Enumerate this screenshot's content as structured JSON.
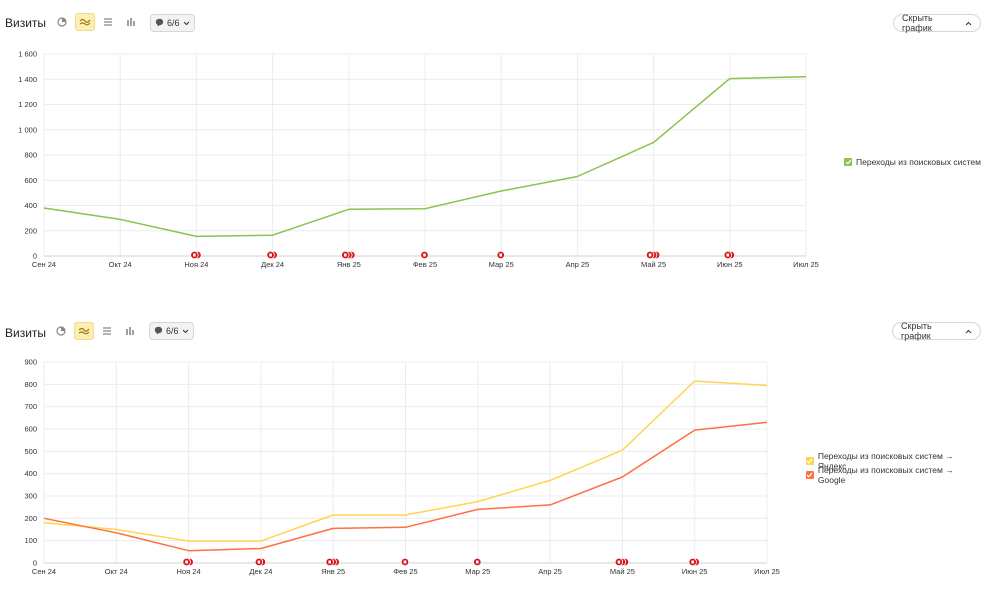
{
  "panels": [
    {
      "toolbar": {
        "title": "Визиты",
        "counter": "6/6",
        "hide_label": "Скрыть график",
        "view_icons": [
          "pie-chart-icon",
          "line-chart-icon",
          "area-chart-icon",
          "bar-chart-icon"
        ],
        "active_view": "line-chart-icon"
      },
      "legend": [
        {
          "label": "Переходы из поисковых систем",
          "color": "#8bc34a"
        }
      ]
    },
    {
      "toolbar": {
        "title": "Визиты",
        "counter": "6/6",
        "hide_label": "Скрыть график",
        "view_icons": [
          "pie-chart-icon",
          "line-chart-icon",
          "area-chart-icon",
          "bar-chart-icon"
        ],
        "active_view": "line-chart-icon"
      },
      "legend": [
        {
          "label": "Переходы из поисковых систем → Яндекс",
          "color": "#ffd54f"
        },
        {
          "label": "Переходы из поисковых систем → Google",
          "color": "#ff7043"
        }
      ]
    }
  ],
  "chart_data": [
    {
      "type": "line",
      "x": [
        "Сен 24",
        "Окт 24",
        "Ноя 24",
        "Дек 24",
        "Янв 25",
        "Фев 25",
        "Мар 25",
        "Апр 25",
        "Май 25",
        "Июн 25",
        "Июл 25"
      ],
      "ylim": [
        0,
        1600
      ],
      "yticks": [
        0,
        200,
        400,
        600,
        800,
        1000,
        1200,
        1400,
        1600
      ],
      "ytick_labels": [
        "0",
        "200",
        "400",
        "600",
        "800",
        "1 000",
        "1 200",
        "1 400",
        "1 600"
      ],
      "grid": true,
      "legend_position": "right",
      "series": [
        {
          "name": "Переходы из поисковых систем",
          "color": "#8bc34a",
          "values": [
            380,
            290,
            155,
            165,
            370,
            375,
            515,
            630,
            900,
            1405,
            1420
          ]
        }
      ],
      "annotations": [
        {
          "x": "Ноя 24",
          "count": 2
        },
        {
          "x": "Дек 24",
          "count": 2
        },
        {
          "x": "Янв 25",
          "count": 3
        },
        {
          "x": "Фев 25",
          "count": 1
        },
        {
          "x": "Мар 25",
          "count": 1
        },
        {
          "x": "Май 25",
          "count": 3
        },
        {
          "x": "Июн 25",
          "count": 2
        }
      ]
    },
    {
      "type": "line",
      "x": [
        "Сен 24",
        "Окт 24",
        "Ноя 24",
        "Дек 24",
        "Янв 25",
        "Фев 25",
        "Мар 25",
        "Апр 25",
        "Май 25",
        "Июн 25",
        "Июл 25"
      ],
      "ylim": [
        0,
        900
      ],
      "yticks": [
        0,
        100,
        200,
        300,
        400,
        500,
        600,
        700,
        800,
        900
      ],
      "ytick_labels": [
        "0",
        "100",
        "200",
        "300",
        "400",
        "500",
        "600",
        "700",
        "800",
        "900"
      ],
      "grid": true,
      "legend_position": "right",
      "series": [
        {
          "name": "Переходы из поисковых систем → Яндекс",
          "color": "#ffd54f",
          "values": [
            180,
            150,
            98,
            98,
            215,
            215,
            275,
            370,
            505,
            815,
            795
          ]
        },
        {
          "name": "Переходы из поисковых систем → Google",
          "color": "#ff7043",
          "values": [
            200,
            135,
            55,
            65,
            155,
            160,
            240,
            260,
            385,
            595,
            630
          ]
        }
      ],
      "annotations": [
        {
          "x": "Ноя 24",
          "count": 2
        },
        {
          "x": "Дек 24",
          "count": 2
        },
        {
          "x": "Янв 25",
          "count": 3
        },
        {
          "x": "Фев 25",
          "count": 1
        },
        {
          "x": "Мар 25",
          "count": 1
        },
        {
          "x": "Май 25",
          "count": 3
        },
        {
          "x": "Июн 25",
          "count": 2
        }
      ]
    }
  ]
}
